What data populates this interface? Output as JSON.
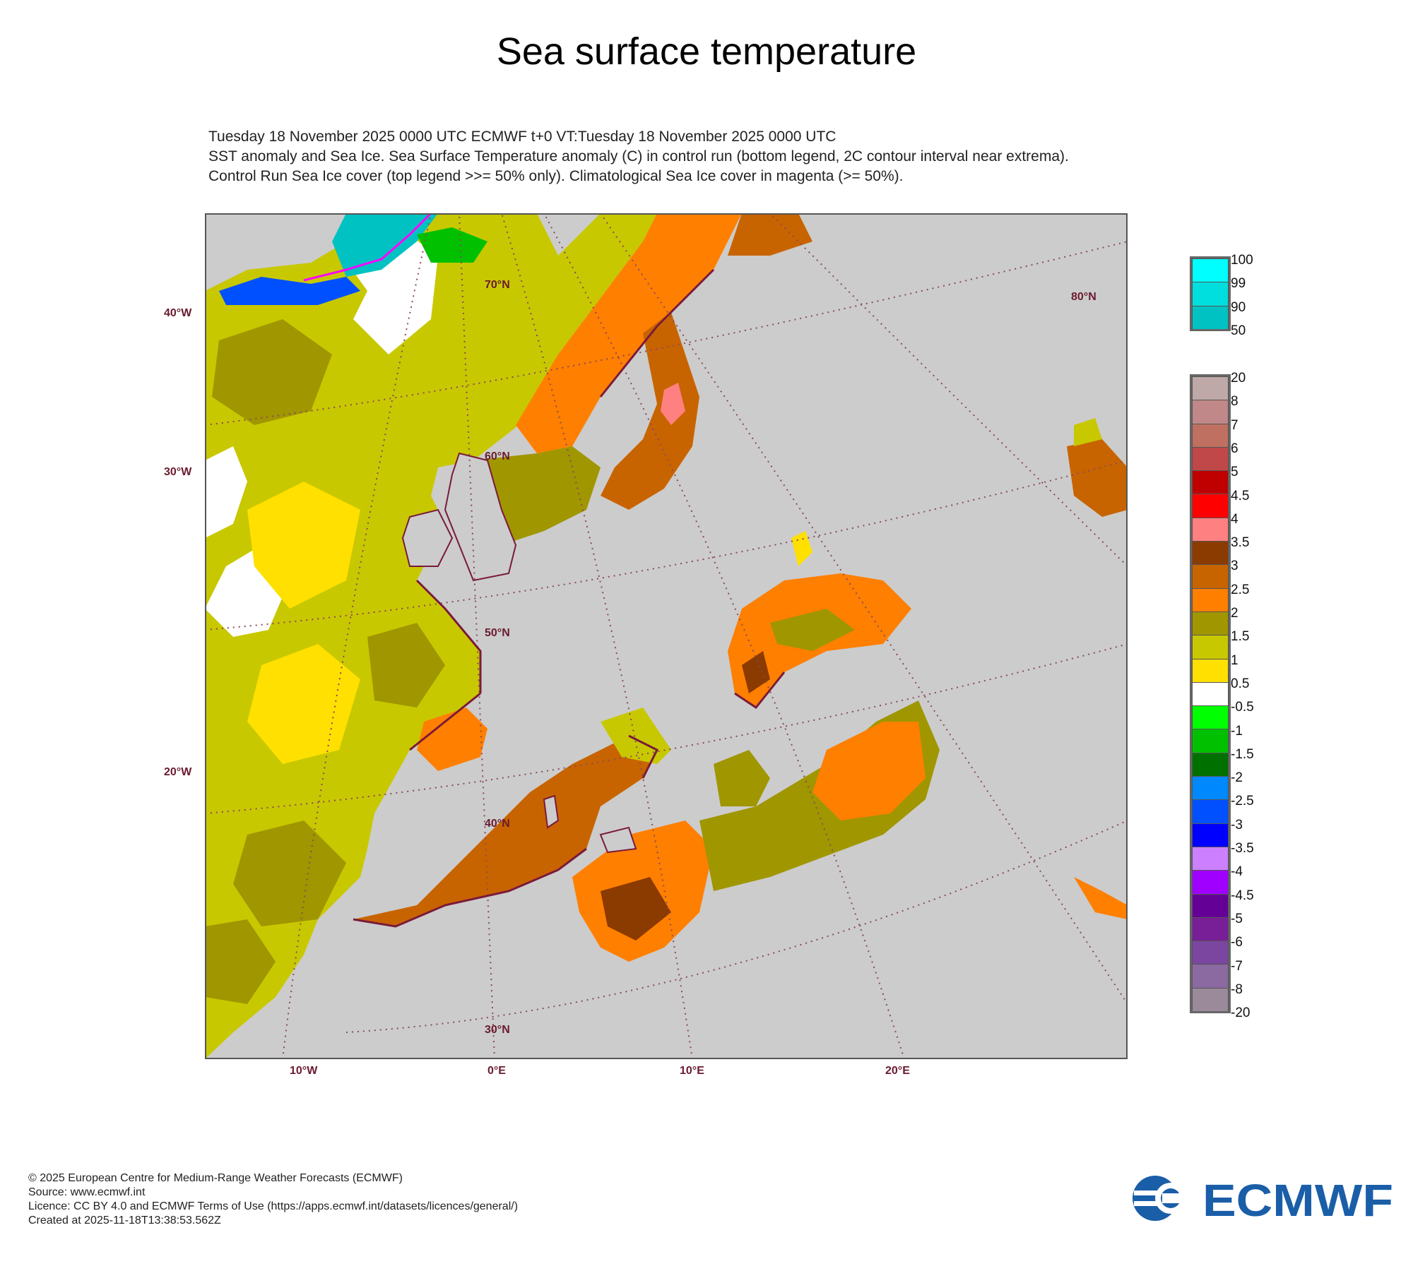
{
  "title": "Sea surface temperature",
  "description": [
    "Tuesday 18 November 2025 0000 UTC  ECMWF  t+0  VT:Tuesday 18 November 2025 0000 UTC",
    "SST anomaly and Sea Ice. Sea Surface Temperature anomaly (C) in control run (bottom legend, 2C contour interval near extrema).",
    "Control Run Sea Ice cover (top legend >>= 50% only). Climatological Sea Ice cover in magenta (>= 50%)."
  ],
  "map": {
    "left_labels": [
      "40°W",
      "30°W",
      "20°W"
    ],
    "bottom_labels": [
      "10°W",
      "0°E",
      "10°E",
      "20°E"
    ],
    "lat_labels": [
      "70°N",
      "60°N",
      "50°N",
      "40°N",
      "30°N"
    ],
    "corner_lat_label": "80°N",
    "colors": {
      "land": "#cccccc",
      "coast": "#7a1a3a",
      "grid": "#8a4a5a"
    }
  },
  "legend_top": {
    "labels": [
      "100",
      "99",
      "90",
      "50"
    ],
    "colors": [
      "#00ffff",
      "#00dede",
      "#00c2c2"
    ]
  },
  "legend_bottom": {
    "labels": [
      "20",
      "8",
      "7",
      "6",
      "5",
      "4.5",
      "4",
      "3.5",
      "3",
      "2.5",
      "2",
      "1.5",
      "1",
      "0.5",
      "-0.5",
      "-1",
      "-1.5",
      "-2",
      "-2.5",
      "-3",
      "-3.5",
      "-4",
      "-4.5",
      "-5",
      "-6",
      "-7",
      "-8",
      "-20"
    ],
    "colors": [
      "#bfa8a8",
      "#c08888",
      "#c07060",
      "#c04848",
      "#c00000",
      "#ff0000",
      "#ff8080",
      "#8b3a00",
      "#c86400",
      "#ff7f00",
      "#a09600",
      "#c8c800",
      "#ffe000",
      "#ffffff",
      "#00ff00",
      "#00c000",
      "#007000",
      "#0088ff",
      "#0050ff",
      "#0000ff",
      "#cc80ff",
      "#a000ff",
      "#640096",
      "#781e96",
      "#7a46a0",
      "#8a6aa0",
      "#9a8a9a"
    ]
  },
  "footer": [
    "© 2025 European Centre for Medium-Range Weather Forecasts (ECMWF)",
    "Source: www.ecmwf.int",
    "Licence: CC BY 4.0 and ECMWF Terms of Use (https://apps.ecmwf.int/datasets/licences/general/)",
    "Created at 2025-11-18T13:38:53.562Z"
  ],
  "logo_text": "ECMWF",
  "logo_color": "#1a5ea8"
}
